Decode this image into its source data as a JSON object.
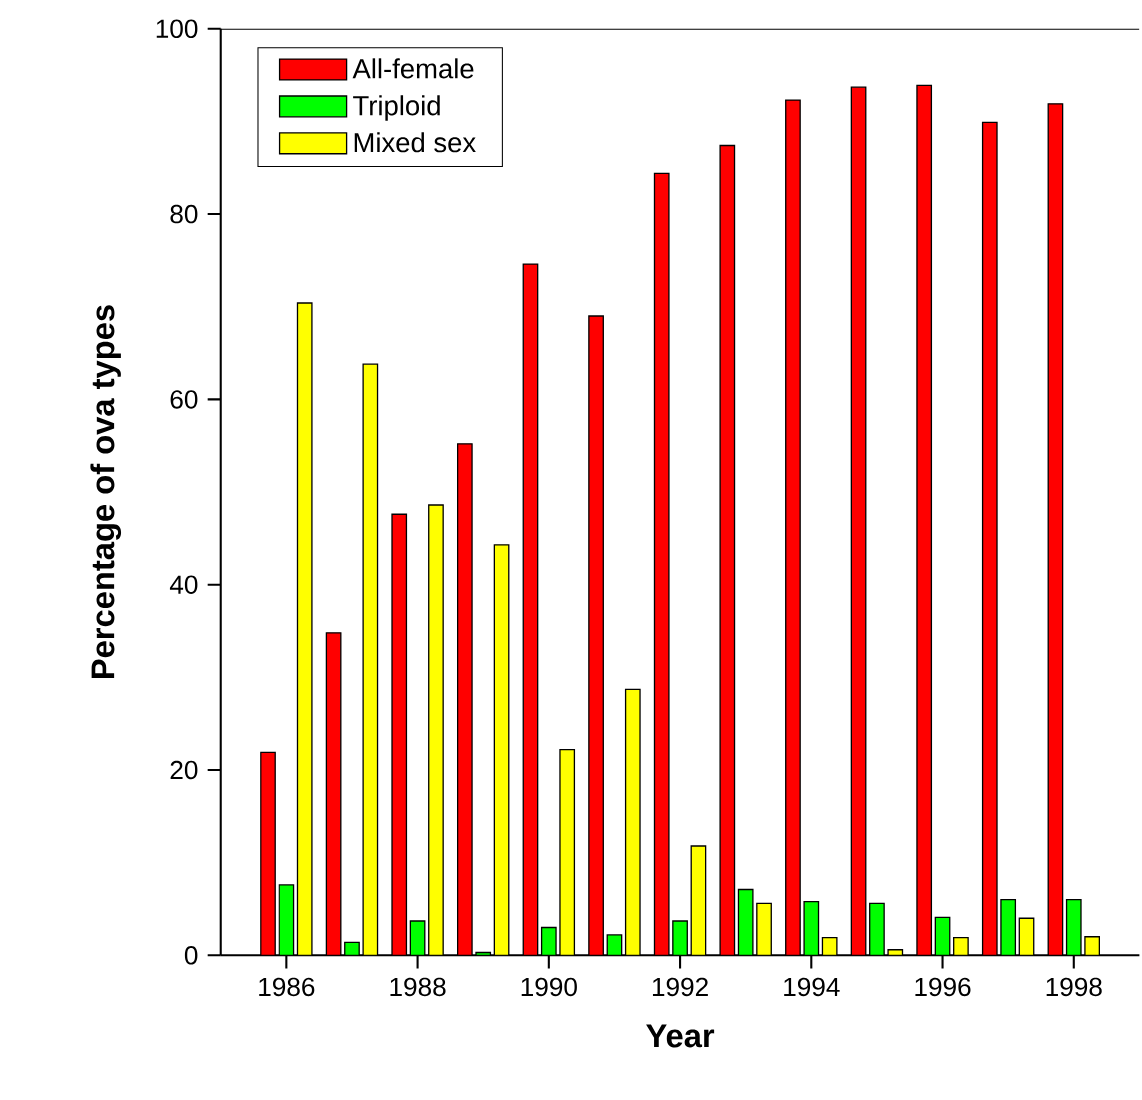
{
  "chart_data": {
    "type": "bar",
    "xlabel": "Year",
    "ylabel": "Percentage of ova types",
    "x": [
      1986,
      1987,
      1988,
      1989,
      1990,
      1991,
      1992,
      1993,
      1994,
      1995,
      1996,
      1997,
      1998
    ],
    "series": [
      {
        "name": "All-female",
        "color": "#ff0000",
        "values": [
          21.9,
          34.8,
          47.6,
          55.2,
          74.6,
          69,
          84.4,
          87.4,
          92.3,
          93.7,
          93.9,
          89.9,
          91.9
        ]
      },
      {
        "name": "Triploid",
        "color": "#00ff00",
        "values": [
          7.6,
          1.4,
          3.7,
          0.3,
          3.0,
          2.2,
          3.7,
          7.1,
          5.8,
          5.6,
          4.1,
          6.0,
          6.0
        ]
      },
      {
        "name": "Mixed sex",
        "color": "#ffff00",
        "values": [
          70.4,
          63.8,
          48.6,
          44.3,
          22.2,
          28.7,
          11.8,
          5.6,
          1.9,
          0.6,
          1.9,
          4.0,
          2.0
        ]
      }
    ],
    "xlim": [
      1985,
      1999
    ],
    "xticks": [
      1986,
      1988,
      1990,
      1992,
      1994,
      1996,
      1998
    ],
    "ylim": [
      0,
      100
    ],
    "yticks": [
      0,
      20,
      40,
      60,
      80,
      100
    ],
    "legend": "top left",
    "grid": false
  }
}
